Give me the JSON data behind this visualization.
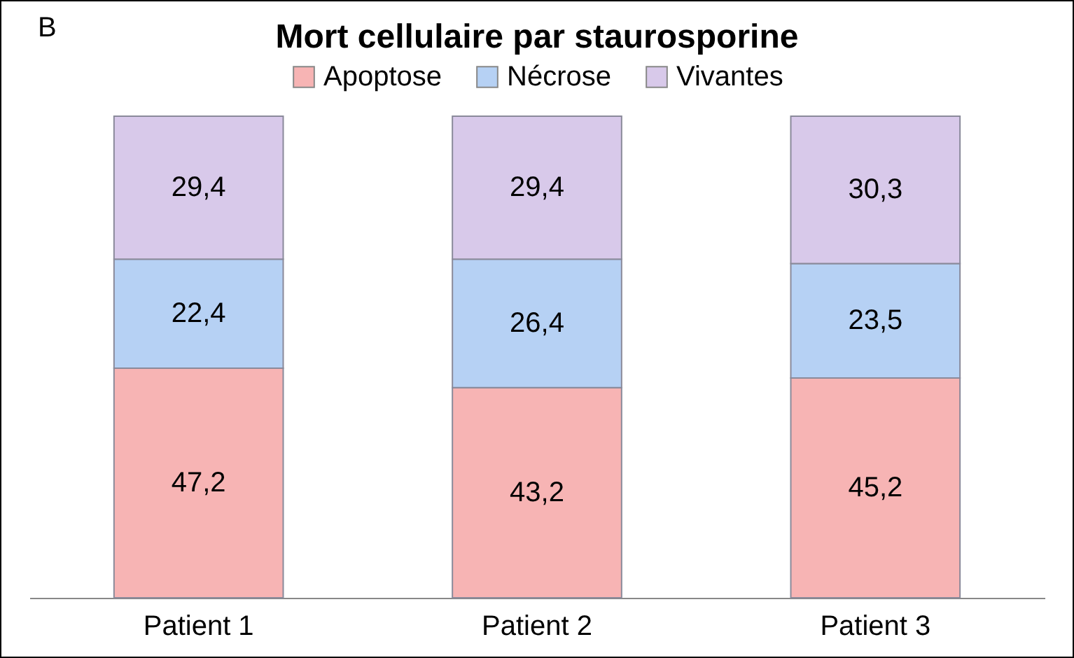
{
  "chart_data": {
    "type": "bar",
    "title": "Mort cellulaire par staurosporine",
    "annotations": [
      "B"
    ],
    "categories": [
      "Patient 1",
      "Patient 2",
      "Patient 3"
    ],
    "stacked": true,
    "legend": "top",
    "tick_labels": "x",
    "series": [
      {
        "name": "Apoptose",
        "color": "#f7b4b4",
        "values": [
          47.2,
          43.2,
          45.2
        ],
        "value_labels": [
          "47,2",
          "43,2",
          "45,2"
        ]
      },
      {
        "name": "Nécrose",
        "color": "#b6d1f4",
        "values": [
          22.4,
          26.4,
          23.5
        ],
        "value_labels": [
          "22,4",
          "26,4",
          "23,5"
        ]
      },
      {
        "name": "Vivantes",
        "color": "#d8c9ea",
        "values": [
          29.4,
          29.4,
          30.3
        ],
        "value_labels": [
          "29,4",
          "29,4",
          "30,3"
        ]
      }
    ]
  }
}
